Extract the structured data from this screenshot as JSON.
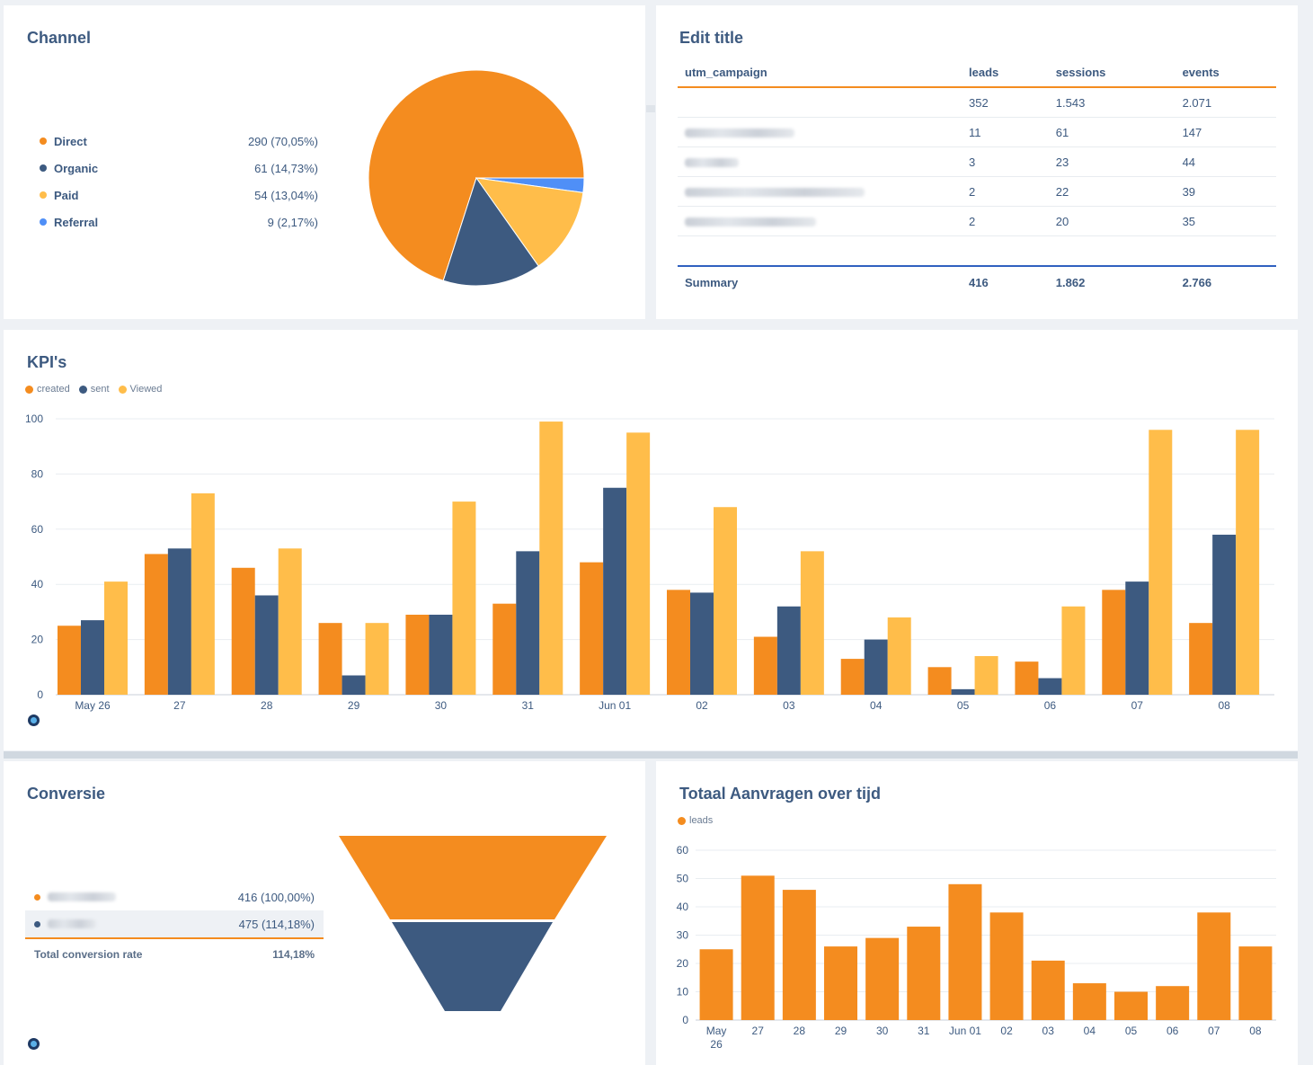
{
  "colors": {
    "orange": "#f48c1f",
    "navy": "#3d5a80",
    "yellow": "#ffbd4a",
    "blue": "#4f8ff7"
  },
  "channel": {
    "title": "Channel",
    "items": [
      {
        "label": "Direct",
        "value": "290",
        "pct": "(70,05%)",
        "color": "#f48c1f"
      },
      {
        "label": "Organic",
        "value": "61",
        "pct": "(14,73%)",
        "color": "#3d5a80"
      },
      {
        "label": "Paid",
        "value": "54",
        "pct": "(13,04%)",
        "color": "#ffbd4a"
      },
      {
        "label": "Referral",
        "value": "9",
        "pct": "(2,17%)",
        "color": "#4f8ff7"
      }
    ]
  },
  "table": {
    "title": "Edit title",
    "headers": [
      "utm_campaign",
      "leads",
      "sessions",
      "events"
    ],
    "rows": [
      {
        "campaign": "",
        "leads": "352",
        "sessions": "1.543",
        "events": "2.071"
      },
      {
        "campaign": "",
        "leads": "11",
        "sessions": "61",
        "events": "147"
      },
      {
        "campaign": "",
        "leads": "3",
        "sessions": "23",
        "events": "44"
      },
      {
        "campaign": "",
        "leads": "2",
        "sessions": "22",
        "events": "39"
      },
      {
        "campaign": "",
        "leads": "2",
        "sessions": "20",
        "events": "35"
      }
    ],
    "summary": {
      "label": "Summary",
      "leads": "416",
      "sessions": "1.862",
      "events": "2.766"
    }
  },
  "kpi": {
    "title": "KPI's",
    "legend": [
      "created",
      "sent",
      "Viewed"
    ]
  },
  "conversion": {
    "title": "Conversie",
    "rows": [
      {
        "value": "416",
        "pct": "(100,00%)",
        "color": "#f48c1f"
      },
      {
        "value": "475",
        "pct": "(114,18%)",
        "color": "#3d5a80"
      }
    ],
    "total_label": "Total conversion rate",
    "total_value": "114,18%"
  },
  "total": {
    "title": "Totaal Aanvragen over tijd",
    "legend": "leads"
  },
  "chart_data": [
    {
      "type": "pie",
      "title": "Channel",
      "categories": [
        "Direct",
        "Organic",
        "Paid",
        "Referral"
      ],
      "values": [
        290,
        61,
        54,
        9
      ]
    },
    {
      "type": "table",
      "title": "Edit title",
      "columns": [
        "utm_campaign",
        "leads",
        "sessions",
        "events"
      ],
      "rows": [
        [
          "",
          352,
          1543,
          2071
        ],
        [
          "",
          11,
          61,
          147
        ],
        [
          "",
          3,
          23,
          44
        ],
        [
          "",
          2,
          22,
          39
        ],
        [
          "",
          2,
          20,
          35
        ]
      ],
      "summary": [
        "Summary",
        416,
        1862,
        2766
      ]
    },
    {
      "type": "bar",
      "title": "KPI's",
      "categories": [
        "May 26",
        "27",
        "28",
        "29",
        "30",
        "31",
        "Jun 01",
        "02",
        "03",
        "04",
        "05",
        "06",
        "07",
        "08"
      ],
      "series": [
        {
          "name": "created",
          "color": "#f48c1f",
          "values": [
            25,
            51,
            46,
            26,
            29,
            33,
            48,
            38,
            21,
            13,
            10,
            12,
            38,
            26
          ]
        },
        {
          "name": "sent",
          "color": "#3d5a80",
          "values": [
            27,
            53,
            36,
            7,
            29,
            52,
            75,
            37,
            32,
            20,
            2,
            6,
            41,
            58
          ]
        },
        {
          "name": "Viewed",
          "color": "#ffbd4a",
          "values": [
            41,
            73,
            53,
            26,
            70,
            99,
            95,
            68,
            52,
            28,
            14,
            32,
            96,
            96
          ]
        }
      ],
      "ylim": [
        0,
        100
      ],
      "yticks": [
        0,
        20,
        40,
        60,
        80,
        100
      ],
      "grid": true,
      "legend": "top-left"
    },
    {
      "type": "bar",
      "title": "Conversie",
      "subtype": "funnel",
      "values": [
        416,
        475
      ]
    },
    {
      "type": "bar",
      "title": "Totaal Aanvragen over tijd",
      "categories": [
        "May 26",
        "27",
        "28",
        "29",
        "30",
        "31",
        "Jun 01",
        "02",
        "03",
        "04",
        "05",
        "06",
        "07",
        "08"
      ],
      "series": [
        {
          "name": "leads",
          "color": "#f48c1f",
          "values": [
            25,
            51,
            46,
            26,
            29,
            33,
            48,
            38,
            21,
            13,
            10,
            12,
            38,
            26
          ]
        }
      ],
      "ylim": [
        0,
        60
      ],
      "yticks": [
        0,
        10,
        20,
        30,
        40,
        50,
        60
      ],
      "grid": true,
      "legend": "top-left"
    }
  ]
}
